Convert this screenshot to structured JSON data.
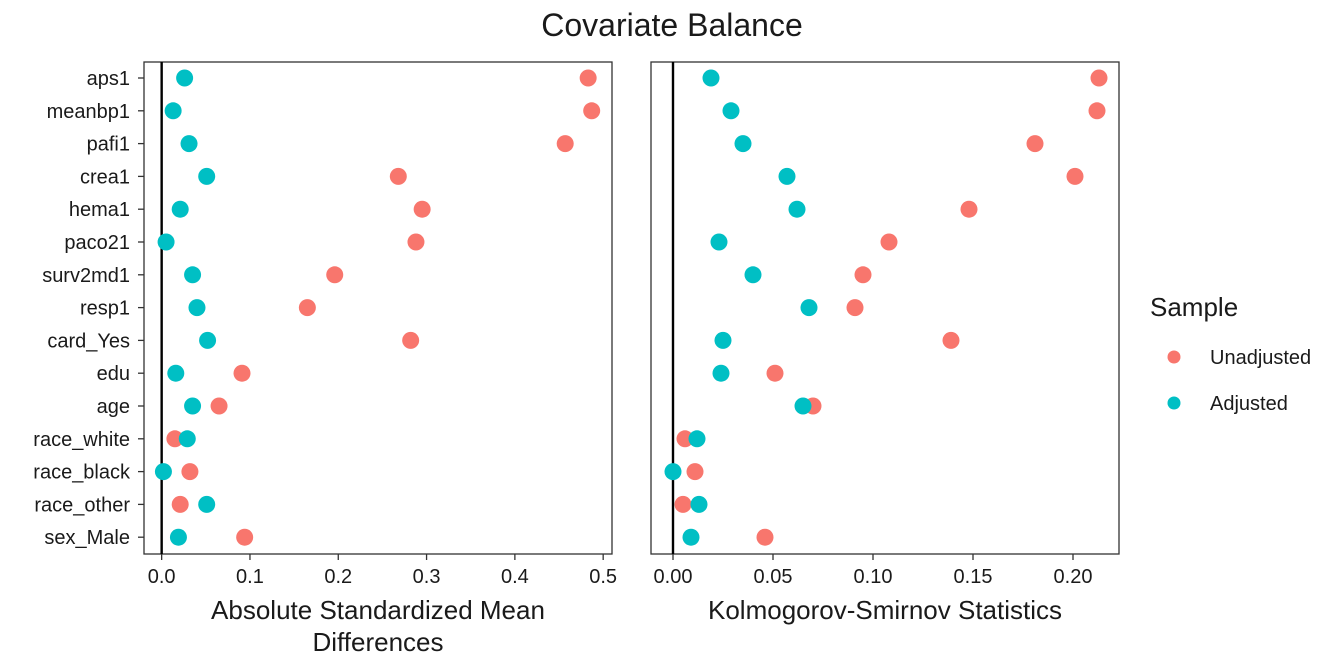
{
  "title": "Covariate Balance",
  "legend": {
    "title": "Sample",
    "position": "right",
    "items": [
      {
        "label": "Unadjusted",
        "color": "#F8766D"
      },
      {
        "label": "Adjusted",
        "color": "#00BFC4"
      }
    ]
  },
  "chart_data": [
    {
      "type": "scatter",
      "xlabel": "Absolute Standardized Mean Differences",
      "xlim": [
        -0.02,
        0.51
      ],
      "xticks": [
        "0.0",
        "0.1",
        "0.2",
        "0.3",
        "0.4",
        "0.5"
      ],
      "reference_line": 0,
      "grid": false,
      "categories": [
        "aps1",
        "meanbp1",
        "pafi1",
        "crea1",
        "hema1",
        "paco21",
        "surv2md1",
        "resp1",
        "card_Yes",
        "edu",
        "age",
        "race_white",
        "race_black",
        "race_other",
        "sex_Male"
      ],
      "series": [
        {
          "name": "Unadjusted",
          "values": [
            0.483,
            0.487,
            0.457,
            0.268,
            0.295,
            0.288,
            0.196,
            0.165,
            0.282,
            0.091,
            0.065,
            0.015,
            0.032,
            0.021,
            0.094
          ]
        },
        {
          "name": "Adjusted",
          "values": [
            0.026,
            0.013,
            0.031,
            0.051,
            0.021,
            0.005,
            0.035,
            0.04,
            0.052,
            0.016,
            0.035,
            0.029,
            0.002,
            0.051,
            0.019
          ]
        }
      ]
    },
    {
      "type": "scatter",
      "xlabel": "Kolmogorov-Smirnov Statistics",
      "xlim": [
        -0.011,
        0.223
      ],
      "xticks": [
        "0.00",
        "0.05",
        "0.10",
        "0.15",
        "0.20"
      ],
      "reference_line": 0,
      "grid": false,
      "categories": [
        "aps1",
        "meanbp1",
        "pafi1",
        "crea1",
        "hema1",
        "paco21",
        "surv2md1",
        "resp1",
        "card_Yes",
        "edu",
        "age",
        "race_white",
        "race_black",
        "race_other",
        "sex_Male"
      ],
      "series": [
        {
          "name": "Unadjusted",
          "values": [
            0.213,
            0.212,
            0.181,
            0.201,
            0.148,
            0.108,
            0.095,
            0.091,
            0.139,
            0.051,
            0.07,
            0.006,
            0.011,
            0.005,
            0.046
          ]
        },
        {
          "name": "Adjusted",
          "values": [
            0.019,
            0.029,
            0.035,
            0.057,
            0.062,
            0.023,
            0.04,
            0.068,
            0.025,
            0.024,
            0.065,
            0.012,
            0.0,
            0.013,
            0.009
          ]
        }
      ]
    }
  ]
}
